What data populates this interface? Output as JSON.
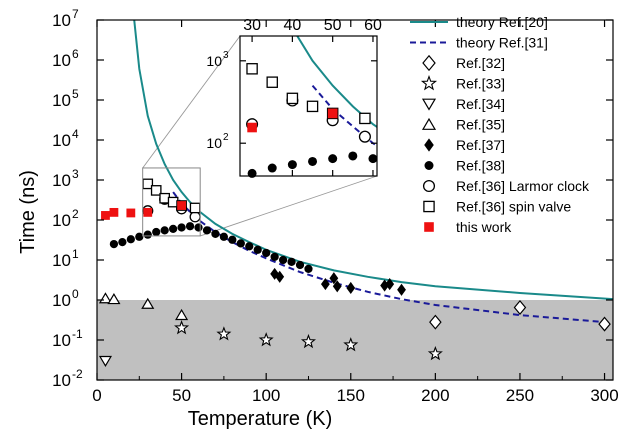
{
  "chart_data": {
    "type": "scatter",
    "xlabel": "Temperature (K)",
    "ylabel": "Time (ns)",
    "xlim": [
      0,
      305
    ],
    "ylim": [
      0.01,
      10000000
    ],
    "yscale": "log",
    "x_ticks": [
      0,
      50,
      100,
      150,
      200,
      250,
      300
    ],
    "y_ticks": [
      {
        "value": 0.01,
        "base": "10",
        "exp": "-2"
      },
      {
        "value": 0.1,
        "base": "10",
        "exp": "-1"
      },
      {
        "value": 1,
        "base": "10",
        "exp": "0"
      },
      {
        "value": 10,
        "base": "10",
        "exp": "1"
      },
      {
        "value": 100,
        "base": "10",
        "exp": "2"
      },
      {
        "value": 1000,
        "base": "10",
        "exp": "3"
      },
      {
        "value": 10000,
        "base": "10",
        "exp": "4"
      },
      {
        "value": 100000,
        "base": "10",
        "exp": "5"
      },
      {
        "value": 1000000,
        "base": "10",
        "exp": "6"
      },
      {
        "value": 10000000,
        "base": "10",
        "exp": "7"
      }
    ],
    "shaded_region": {
      "y_from": 0.01,
      "y_to": 1,
      "color": "#c0c0c0"
    },
    "legend_position": "top-right",
    "series": [
      {
        "name": "theory Ref.[20]",
        "kind": "line",
        "style": "solid",
        "color": "#1a8a8a",
        "x": [
          22,
          25,
          30,
          35,
          40,
          45,
          50,
          55,
          60,
          70,
          80,
          90,
          100,
          120,
          140,
          160,
          180,
          200,
          250,
          305
        ],
        "y": [
          10000000,
          600000,
          40000,
          8000,
          2500,
          1000,
          500,
          280,
          170,
          80,
          45,
          28,
          18,
          9,
          5.5,
          3.8,
          2.8,
          2.2,
          1.5,
          1.05
        ]
      },
      {
        "name": "theory Ref.[31]",
        "kind": "line",
        "style": "dashed",
        "color": "#1a1a99",
        "x": [
          45,
          50,
          55,
          60,
          70,
          80,
          90,
          100,
          120,
          140,
          160,
          180,
          200,
          250,
          300
        ],
        "y": [
          500,
          260,
          160,
          100,
          50,
          28,
          17,
          11,
          5,
          2.7,
          1.6,
          1.05,
          0.75,
          0.42,
          0.28
        ]
      },
      {
        "name": "Ref.[32]",
        "kind": "marker",
        "marker": "diamond",
        "x": [
          200,
          250,
          300
        ],
        "y": [
          0.28,
          0.65,
          0.25
        ]
      },
      {
        "name": "Ref.[33]",
        "kind": "marker",
        "marker": "star",
        "x": [
          50,
          75,
          100,
          125,
          150,
          200
        ],
        "y": [
          0.2,
          0.14,
          0.1,
          0.09,
          0.075,
          0.045
        ]
      },
      {
        "name": "Ref.[34]",
        "kind": "marker",
        "marker": "triangle-down",
        "x": [
          5
        ],
        "y": [
          0.03
        ]
      },
      {
        "name": "Ref.[35]",
        "kind": "marker",
        "marker": "triangle-up",
        "x": [
          5,
          10,
          30,
          50
        ],
        "y": [
          1.1,
          1.05,
          0.8,
          0.42
        ]
      },
      {
        "name": "Ref.[37]",
        "kind": "marker",
        "marker": "diamond-filled",
        "x": [
          105,
          108,
          135,
          140,
          142,
          150,
          170,
          173,
          180
        ],
        "y": [
          4.5,
          3.8,
          2.5,
          3.5,
          2.2,
          2.0,
          2.3,
          2.5,
          1.8
        ]
      },
      {
        "name": "Ref.[38]",
        "kind": "marker",
        "marker": "circle-filled",
        "x": [
          10,
          15,
          20,
          25,
          30,
          35,
          40,
          45,
          50,
          55,
          60,
          65,
          70,
          75,
          80,
          85,
          90,
          95,
          100,
          105,
          110,
          115,
          120,
          125
        ],
        "y": [
          25,
          28,
          33,
          38,
          43,
          50,
          55,
          60,
          65,
          70,
          65,
          55,
          45,
          38,
          32,
          26,
          22,
          18,
          15,
          12,
          10,
          9,
          7.5,
          6
        ]
      },
      {
        "name": "Ref.[36] Larmor clock",
        "kind": "marker",
        "marker": "circle-open",
        "x": [
          30,
          40,
          50,
          58
        ],
        "y": [
          170,
          330,
          190,
          120
        ]
      },
      {
        "name": "Ref.[36] spin valve",
        "kind": "marker",
        "marker": "square-open",
        "x": [
          30,
          35,
          40,
          45,
          50,
          58
        ],
        "y": [
          800,
          550,
          350,
          280,
          230,
          200
        ]
      },
      {
        "name": "this work",
        "kind": "marker",
        "marker": "square-filled",
        "color": "#ee1111",
        "x": [
          5,
          10,
          20,
          30,
          50
        ],
        "y": [
          130,
          155,
          150,
          155,
          230
        ]
      }
    ],
    "inset": {
      "xlim": [
        27,
        61
      ],
      "ylim": [
        40,
        2000
      ],
      "x_ticks": [
        30,
        40,
        50,
        60
      ],
      "y_ticks": [
        {
          "value": 100,
          "base": "10",
          "exp": "2"
        },
        {
          "value": 1000,
          "base": "10",
          "exp": "3"
        }
      ],
      "zoom_box": {
        "x": [
          27,
          61
        ],
        "y": [
          40,
          2000
        ]
      }
    }
  }
}
